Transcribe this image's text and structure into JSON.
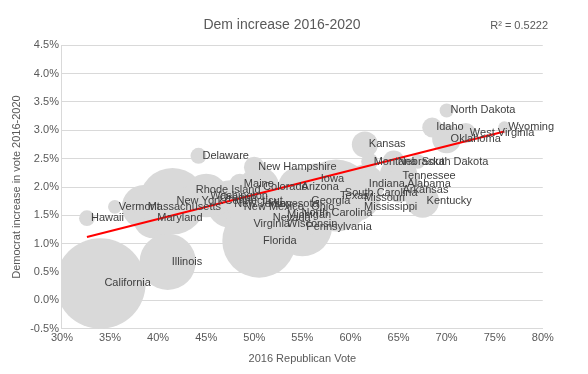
{
  "chart_data": {
    "type": "bubble",
    "title": "Dem increase 2016-2020",
    "annotation": "R² = 0.5222",
    "x_label": "2016 Republican Vote",
    "y_label": "Democrat increase in vote 2016-2020",
    "color": "#d9d9d9",
    "grid": "y",
    "point_labels": [
      "California",
      "Hawaii",
      "Vermont",
      "Massachusetts",
      "Maryland",
      "New York",
      "Illinois",
      "Delaware",
      "Rhode Island",
      "Washington",
      "Connecticut",
      "New Jersey",
      "Oregon",
      "New Mexico",
      "Maine",
      "Colorado",
      "New Hampshire",
      "Minnesota",
      "Virginia",
      "Nevada",
      "Michigan",
      "Wisconsin",
      "Pennsylvania",
      "Florida",
      "North Carolina",
      "Ohio",
      "Georgia",
      "Arizona",
      "Iowa",
      "Kansas",
      "Montana",
      "Nebraska",
      "South Dakota",
      "North Dakota",
      "Idaho",
      "Wyoming",
      "West Virginia",
      "Oklahoma",
      "Tennessee",
      "Indiana",
      "Alabama",
      "Arkansas",
      "Kentucky",
      "Mississippi",
      "Missouri",
      "Texas",
      "South Carolina"
    ],
    "x": [
      34.0,
      32.6,
      35.5,
      38.5,
      39.5,
      41.5,
      41.0,
      44.2,
      43.5,
      45.0,
      46.5,
      47.5,
      46.0,
      48.5,
      48.5,
      50.5,
      50.0,
      51.0,
      49.5,
      51.5,
      53.0,
      53.0,
      55.0,
      50.5,
      54.5,
      55.5,
      55.5,
      54.5,
      56.5,
      61.5,
      62.0,
      64.5,
      67.0,
      70.0,
      68.5,
      76.0,
      72.0,
      70.0,
      65.0,
      61.5,
      65.5,
      65.0,
      67.5,
      61.0,
      61.0,
      58.5,
      59.0
    ],
    "values": [
      0.3,
      1.45,
      1.65,
      1.65,
      1.45,
      1.75,
      0.68,
      2.55,
      1.95,
      1.85,
      1.75,
      1.7,
      1.8,
      1.65,
      2.05,
      2.0,
      2.35,
      1.7,
      1.35,
      1.45,
      1.5,
      1.35,
      1.3,
      1.05,
      1.55,
      1.65,
      1.75,
      2.0,
      2.15,
      2.75,
      2.45,
      2.45,
      2.45,
      3.35,
      3.05,
      3.05,
      2.95,
      2.85,
      2.2,
      2.05,
      2.05,
      1.95,
      1.75,
      1.65,
      1.8,
      1.85,
      1.9
    ],
    "sizes": [
      14.2,
      0.43,
      0.32,
      3.3,
      2.8,
      7.7,
      5.5,
      0.44,
      0.46,
      3.3,
      1.6,
      3.9,
      2.0,
      0.8,
      0.75,
      2.8,
      0.74,
      2.9,
      4.0,
      1.1,
      4.8,
      3.0,
      6.1,
      9.4,
      4.7,
      5.5,
      4.1,
      2.6,
      1.6,
      1.18,
      0.5,
      0.84,
      0.37,
      0.34,
      0.69,
      0.26,
      0.71,
      1.45,
      2.5,
      2.7,
      2.1,
      1.1,
      1.9,
      1.2,
      2.8,
      9.0,
      2.1
    ],
    "trendline": {
      "x": [
        32.6,
        76.0
      ],
      "values": [
        1.12,
        2.98
      ],
      "color": "#ff0000"
    },
    "xlim": [
      30,
      80
    ],
    "xticks": [
      {
        "value": 30,
        "label": "30%"
      },
      {
        "value": 35,
        "label": "35%"
      },
      {
        "value": 40,
        "label": "40%"
      },
      {
        "value": 45,
        "label": "45%"
      },
      {
        "value": 50,
        "label": "50%"
      },
      {
        "value": 55,
        "label": "55%"
      },
      {
        "value": 60,
        "label": "60%"
      },
      {
        "value": 65,
        "label": "65%"
      },
      {
        "value": 70,
        "label": "70%"
      },
      {
        "value": 75,
        "label": "75%"
      },
      {
        "value": 80,
        "label": "80%"
      }
    ],
    "ylim": [
      -0.5,
      4.5
    ],
    "yticks": [
      {
        "value": -0.5,
        "label": "-0.5%"
      },
      {
        "value": 0,
        "label": "0.0%"
      },
      {
        "value": 0.5,
        "label": "0.5%"
      },
      {
        "value": 1,
        "label": "1.0%"
      },
      {
        "value": 1.5,
        "label": "1.5%"
      },
      {
        "value": 2,
        "label": "2.0%"
      },
      {
        "value": 2.5,
        "label": "2.5%"
      },
      {
        "value": 3,
        "label": "3.0%"
      },
      {
        "value": 3.5,
        "label": "3.5%"
      },
      {
        "value": 4,
        "label": "4.0%"
      },
      {
        "value": 4.5,
        "label": "4.5%"
      }
    ]
  }
}
